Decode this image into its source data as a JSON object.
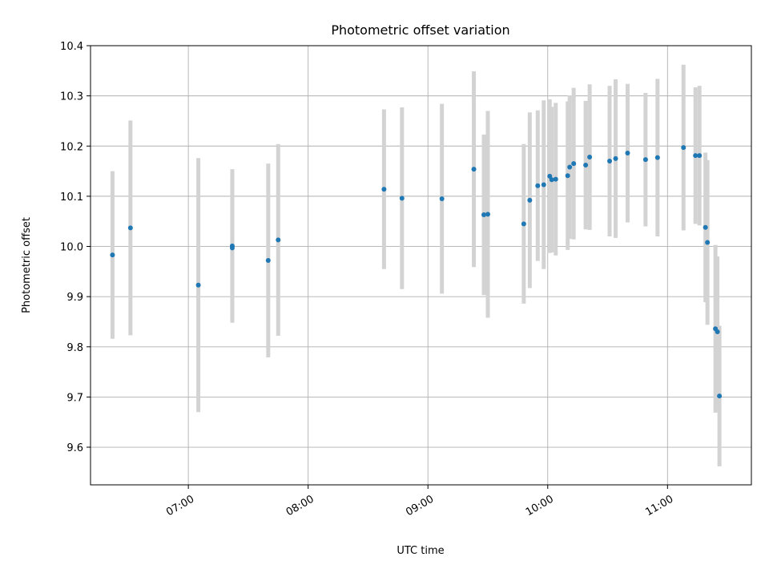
{
  "chart_data": {
    "type": "scatter",
    "title": "Photometric offset variation",
    "xlabel": "UTC time",
    "ylabel": "Photometric offset",
    "grid": true,
    "xlim": [
      "06:11",
      "11:42"
    ],
    "ylim": [
      9.525,
      10.4
    ],
    "xticks": [
      "07:00",
      "08:00",
      "09:00",
      "10:00",
      "11:00"
    ],
    "yticks": [
      "9.6",
      "9.7",
      "9.8",
      "9.9",
      "10.0",
      "10.1",
      "10.2",
      "10.3",
      "10.4"
    ],
    "colors": {
      "points": "#1f77b4",
      "errorbars": "#d3d3d3",
      "grid": "#b0b0b0"
    },
    "series": [
      {
        "points": [
          {
            "x": "06:22",
            "y": 9.983,
            "err": 0.167
          },
          {
            "x": "06:31",
            "y": 10.037,
            "err": 0.214
          },
          {
            "x": "07:05",
            "y": 9.923,
            "err": 0.253
          },
          {
            "x": "07:22",
            "y": 9.997,
            "err": 0.141
          },
          {
            "x": "07:22",
            "y": 10.001,
            "err": 0.153
          },
          {
            "x": "07:40",
            "y": 9.972,
            "err": 0.193
          },
          {
            "x": "07:45",
            "y": 10.013,
            "err": 0.191
          },
          {
            "x": "08:38",
            "y": 10.114,
            "err": 0.159
          },
          {
            "x": "08:47",
            "y": 10.096,
            "err": 0.181
          },
          {
            "x": "09:07",
            "y": 10.095,
            "err": 0.189
          },
          {
            "x": "09:23",
            "y": 10.154,
            "err": 0.195
          },
          {
            "x": "09:28",
            "y": 10.063,
            "err": 0.16
          },
          {
            "x": "09:30",
            "y": 10.064,
            "err": 0.206
          },
          {
            "x": "09:48",
            "y": 10.045,
            "err": 0.159
          },
          {
            "x": "09:51",
            "y": 10.092,
            "err": 0.175
          },
          {
            "x": "09:55",
            "y": 10.121,
            "err": 0.15
          },
          {
            "x": "09:58",
            "y": 10.123,
            "err": 0.168
          },
          {
            "x": "10:01",
            "y": 10.14,
            "err": 0.153
          },
          {
            "x": "10:02",
            "y": 10.133,
            "err": 0.145
          },
          {
            "x": "10:04",
            "y": 10.134,
            "err": 0.152
          },
          {
            "x": "10:10",
            "y": 10.141,
            "err": 0.148
          },
          {
            "x": "10:11",
            "y": 10.158,
            "err": 0.143
          },
          {
            "x": "10:13",
            "y": 10.165,
            "err": 0.151
          },
          {
            "x": "10:19",
            "y": 10.162,
            "err": 0.128
          },
          {
            "x": "10:21",
            "y": 10.178,
            "err": 0.145
          },
          {
            "x": "10:31",
            "y": 10.17,
            "err": 0.15
          },
          {
            "x": "10:34",
            "y": 10.175,
            "err": 0.158
          },
          {
            "x": "10:40",
            "y": 10.186,
            "err": 0.138
          },
          {
            "x": "10:49",
            "y": 10.173,
            "err": 0.133
          },
          {
            "x": "10:55",
            "y": 10.177,
            "err": 0.157
          },
          {
            "x": "11:08",
            "y": 10.197,
            "err": 0.165
          },
          {
            "x": "11:14",
            "y": 10.181,
            "err": 0.136
          },
          {
            "x": "11:16",
            "y": 10.181,
            "err": 0.139
          },
          {
            "x": "11:19",
            "y": 10.038,
            "err": 0.149
          },
          {
            "x": "11:20",
            "y": 10.008,
            "err": 0.164
          },
          {
            "x": "11:24",
            "y": 9.836,
            "err": 0.167
          },
          {
            "x": "11:25",
            "y": 9.83,
            "err": 0.15
          },
          {
            "x": "11:26",
            "y": 9.702,
            "err": 0.14
          }
        ]
      }
    ]
  }
}
